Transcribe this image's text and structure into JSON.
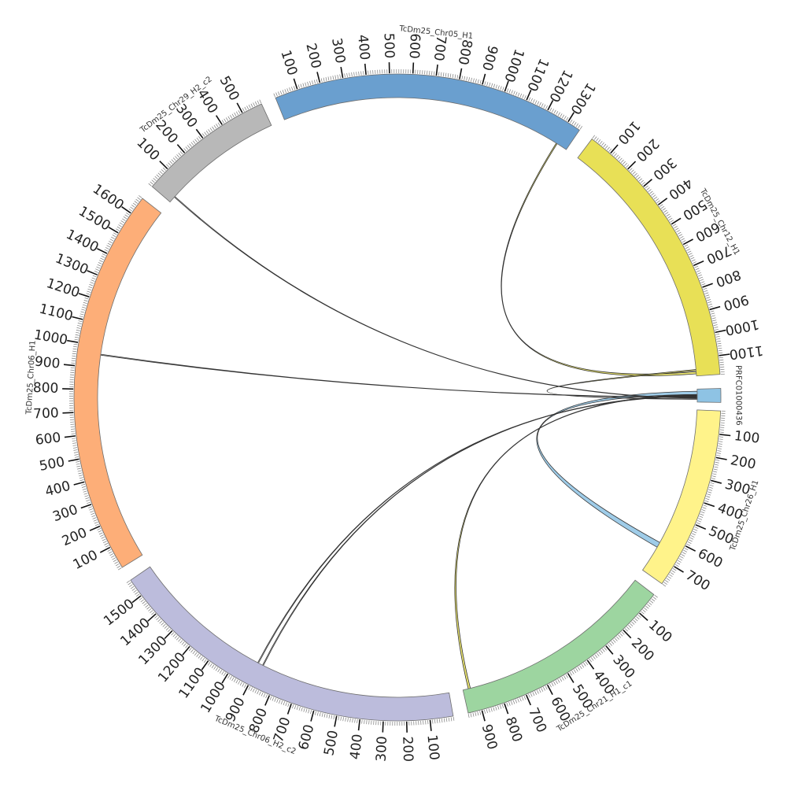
{
  "chart_data": {
    "type": "chord",
    "segments": [
      {
        "name": "PRFC01000436",
        "length": 60,
        "color": "#8ec3e4",
        "ticks": []
      },
      {
        "name": "TcDm25_Chr26_H1",
        "length": 790,
        "color": "#fff38a",
        "ticks": [
          {
            "v": 100,
            "t": "100"
          },
          {
            "v": 200,
            "t": "200"
          },
          {
            "v": 300,
            "t": "300"
          },
          {
            "v": 400,
            "t": "400"
          },
          {
            "v": 500,
            "t": "500"
          },
          {
            "v": 600,
            "t": "600"
          },
          {
            "v": 700,
            "t": "700"
          }
        ]
      },
      {
        "name": "TcDm25_Chr21_H1_c1",
        "length": 960,
        "color": "#9dd5a0",
        "ticks": [
          {
            "v": 100,
            "t": "100"
          },
          {
            "v": 200,
            "t": "200"
          },
          {
            "v": 300,
            "t": "300"
          },
          {
            "v": 400,
            "t": "400"
          },
          {
            "v": 500,
            "t": "500"
          },
          {
            "v": 600,
            "t": "600"
          },
          {
            "v": 700,
            "t": "700"
          },
          {
            "v": 800,
            "t": "800"
          },
          {
            "v": 900,
            "t": "900"
          }
        ]
      },
      {
        "name": "TcDm25_Chr06_H2_c2",
        "length": 1580,
        "color": "#bcbcdc",
        "ticks": [
          {
            "v": 100,
            "t": "100"
          },
          {
            "v": 200,
            "t": "200"
          },
          {
            "v": 300,
            "t": "300"
          },
          {
            "v": 400,
            "t": "400"
          },
          {
            "v": 500,
            "t": "500"
          },
          {
            "v": 600,
            "t": "600"
          },
          {
            "v": 700,
            "t": "700"
          },
          {
            "v": 800,
            "t": "800"
          },
          {
            "v": 900,
            "t": "900"
          },
          {
            "v": 1000,
            "t": "1000"
          },
          {
            "v": 1100,
            "t": "1100"
          },
          {
            "v": 1200,
            "t": "1200"
          },
          {
            "v": 1300,
            "t": "1300"
          },
          {
            "v": 1400,
            "t": "1400"
          },
          {
            "v": 1500,
            "t": "1500"
          }
        ]
      },
      {
        "name": "TcDm25_Chr06_H1",
        "length": 1680,
        "color": "#fdae78",
        "ticks": [
          {
            "v": 100,
            "t": "100"
          },
          {
            "v": 200,
            "t": "200"
          },
          {
            "v": 300,
            "t": "300"
          },
          {
            "v": 400,
            "t": "400"
          },
          {
            "v": 500,
            "t": "500"
          },
          {
            "v": 600,
            "t": "600"
          },
          {
            "v": 700,
            "t": "700"
          },
          {
            "v": 800,
            "t": "800"
          },
          {
            "v": 900,
            "t": "900"
          },
          {
            "v": 1000,
            "t": "1000"
          },
          {
            "v": 1100,
            "t": "1100"
          },
          {
            "v": 1200,
            "t": "1200"
          },
          {
            "v": 1300,
            "t": "1300"
          },
          {
            "v": 1400,
            "t": "1400"
          },
          {
            "v": 1500,
            "t": "1500"
          },
          {
            "v": 1600,
            "t": "1600"
          }
        ]
      },
      {
        "name": "TcDm25_Chr29_H2_c2",
        "length": 590,
        "color": "#b8b8b8",
        "ticks": [
          {
            "v": 100,
            "t": "100"
          },
          {
            "v": 200,
            "t": "200"
          },
          {
            "v": 300,
            "t": "300"
          },
          {
            "v": 400,
            "t": "400"
          },
          {
            "v": 500,
            "t": "500"
          }
        ]
      },
      {
        "name": "TcDm25_Chr05_H1",
        "length": 1360,
        "color": "#6a9fcf",
        "ticks": [
          {
            "v": 100,
            "t": "100"
          },
          {
            "v": 200,
            "t": "200"
          },
          {
            "v": 300,
            "t": "300"
          },
          {
            "v": 400,
            "t": "400"
          },
          {
            "v": 500,
            "t": "500"
          },
          {
            "v": 600,
            "t": "600"
          },
          {
            "v": 700,
            "t": "700"
          },
          {
            "v": 800,
            "t": "800"
          },
          {
            "v": 900,
            "t": "900"
          },
          {
            "v": 1000,
            "t": "1000"
          },
          {
            "v": 1100,
            "t": "1100"
          },
          {
            "v": 1200,
            "t": "1200"
          },
          {
            "v": 1300,
            "t": "1300"
          }
        ]
      },
      {
        "name": "TcDm25_Chr12_H1",
        "length": 1180,
        "color": "#e8e056",
        "ticks": [
          {
            "v": 100,
            "t": "100"
          },
          {
            "v": 200,
            "t": "200"
          },
          {
            "v": 300,
            "t": "300"
          },
          {
            "v": 400,
            "t": "400"
          },
          {
            "v": 500,
            "t": "500"
          },
          {
            "v": 600,
            "t": "600"
          },
          {
            "v": 700,
            "t": "700"
          },
          {
            "v": 800,
            "t": "800"
          },
          {
            "v": 900,
            "t": "900"
          },
          {
            "v": 1000,
            "t": "1000"
          },
          {
            "v": 1100,
            "t": "1100"
          }
        ]
      }
    ],
    "links": [
      {
        "from": {
          "seg": 0,
          "start": 10,
          "end": 25
        },
        "to": {
          "seg": 1,
          "start": 640,
          "end": 665
        },
        "color": "#8ec3e4"
      },
      {
        "from": {
          "seg": 0,
          "start": 25,
          "end": 28
        },
        "to": {
          "seg": 2,
          "start": 925,
          "end": 935
        },
        "color": "#e8e056"
      },
      {
        "from": {
          "seg": 0,
          "start": 30,
          "end": 32
        },
        "to": {
          "seg": 3,
          "start": 880,
          "end": 884
        },
        "color": "#ffffff"
      },
      {
        "from": {
          "seg": 0,
          "start": 32,
          "end": 34
        },
        "to": {
          "seg": 3,
          "start": 905,
          "end": 909
        },
        "color": "#ffffff"
      },
      {
        "from": {
          "seg": 0,
          "start": 36,
          "end": 38
        },
        "to": {
          "seg": 4,
          "start": 960,
          "end": 964
        },
        "color": "#ffffff"
      },
      {
        "from": {
          "seg": 0,
          "start": 40,
          "end": 42
        },
        "to": {
          "seg": 5,
          "start": 30,
          "end": 34
        },
        "color": "#ffffff"
      },
      {
        "from": {
          "seg": 7,
          "start": 1160,
          "end": 1170
        },
        "to": {
          "seg": 6,
          "start": 1305,
          "end": 1310
        },
        "color": "#e8e056"
      },
      {
        "from": {
          "seg": 7,
          "start": 1150,
          "end": 1155
        },
        "to": {
          "seg": 0,
          "start": 45,
          "end": 47
        },
        "color": "#e8e056"
      }
    ]
  }
}
